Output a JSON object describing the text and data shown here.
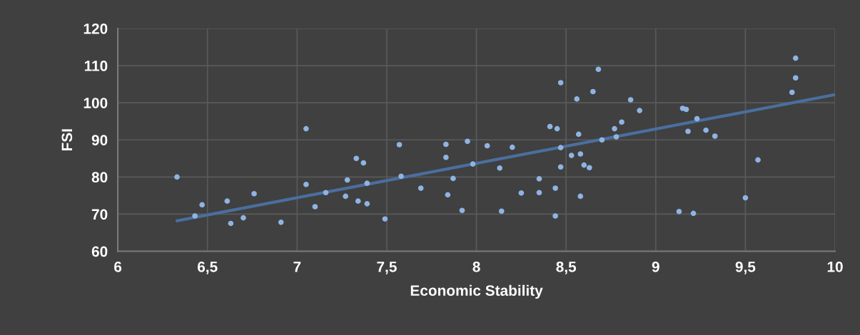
{
  "chart_data": {
    "type": "scatter",
    "xlabel": "Economic Stability",
    "ylabel": "FSI",
    "xlim": [
      6,
      10
    ],
    "ylim": [
      60,
      120
    ],
    "xticks": [
      6,
      {
        "value": 6.5,
        "label": "6,5"
      },
      7,
      {
        "value": 7.5,
        "label": "7,5"
      },
      8,
      {
        "value": 8.5,
        "label": "8,5"
      },
      9,
      {
        "value": 9.5,
        "label": "9,5"
      },
      10
    ],
    "yticks": [
      60,
      70,
      80,
      90,
      100,
      110,
      120
    ],
    "grid": true,
    "series": [
      {
        "marker": "circle",
        "color": "#8fb4e3",
        "x": [
          6.33,
          6.43,
          6.47,
          6.61,
          6.63,
          6.7,
          6.76,
          6.91,
          7.05,
          7.05,
          7.1,
          7.16,
          7.27,
          7.28,
          7.33,
          7.34,
          7.37,
          7.39,
          7.39,
          7.49,
          7.57,
          7.58,
          7.69,
          7.83,
          7.83,
          7.84,
          7.87,
          7.92,
          7.95,
          7.98,
          8.06,
          8.13,
          8.14,
          8.2,
          8.25,
          8.35,
          8.35,
          8.41,
          8.44,
          8.44,
          8.45,
          8.47,
          8.47,
          8.47,
          8.53,
          8.56,
          8.57,
          8.58,
          8.58,
          8.6,
          8.63,
          8.65,
          8.68,
          8.7,
          8.77,
          8.78,
          8.81,
          8.86,
          8.91,
          9.13,
          9.15,
          9.17,
          9.18,
          9.21,
          9.23,
          9.28,
          9.33,
          9.5,
          9.57,
          9.76,
          9.78,
          9.78
        ],
        "values": [
          80,
          69.5,
          72.5,
          73.5,
          67.5,
          69,
          75.5,
          67.8,
          93,
          78,
          72,
          75.8,
          74.8,
          79.2,
          85,
          73.5,
          83.8,
          78.3,
          72.8,
          68.7,
          88.7,
          80.2,
          77,
          88.8,
          85.3,
          75.2,
          79.6,
          71,
          89.6,
          83.5,
          88.4,
          82.4,
          70.8,
          88,
          75.7,
          79.5,
          75.8,
          93.6,
          77,
          69.5,
          93,
          105.4,
          87.9,
          82.7,
          85.8,
          101,
          91.5,
          86.2,
          74.8,
          83.2,
          82.5,
          103,
          109,
          90,
          93,
          90.8,
          94.8,
          100.8,
          97.9,
          70.7,
          98.5,
          98.2,
          92.3,
          70.2,
          95.7,
          92.6,
          91,
          74.4,
          84.6,
          102.8,
          106.7,
          112
        ]
      },
      {
        "type": "line",
        "color": "#4a6f9f",
        "x": [
          6.33,
          10
        ],
        "values": [
          68.2,
          102.2
        ]
      }
    ]
  }
}
